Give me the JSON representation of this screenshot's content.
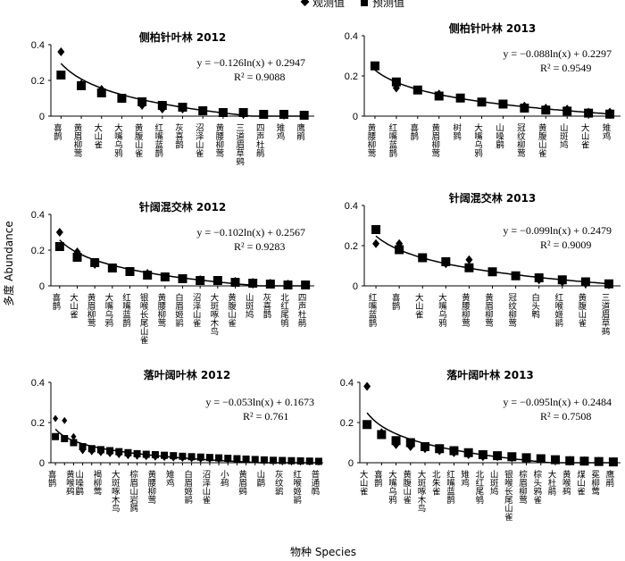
{
  "legend": {
    "observed": "观测值",
    "predicted": "预测值"
  },
  "axes": {
    "ylabel": "多度 Abundance",
    "xlabel": "物种 Species"
  },
  "chart_data": [
    {
      "type": "scatter",
      "title": "侧柏针叶林 2012",
      "equation": "y = −0.126ln(x) + 0.2947",
      "r2": "R² = 0.9088",
      "fit": {
        "a": -0.126,
        "b": 0.2947
      },
      "ylim": [
        0,
        0.4
      ],
      "yticks": [
        "0",
        "0.2",
        "0.4"
      ],
      "categories": [
        "喜鹊",
        "黄眉柳莺",
        "大山雀",
        "大嘴乌鸦",
        "黄腹山雀",
        "红嘴蓝鹊",
        "灰喜鹊",
        "沼泽山雀",
        "黄腰柳莺",
        "三道眉草鹀",
        "四声杜鹃",
        "雉鸡",
        "鹰鹃"
      ],
      "series": [
        {
          "name": "观测值",
          "values": [
            0.36,
            0.18,
            0.15,
            0.1,
            0.06,
            0.04,
            0.04,
            0.03,
            0.02,
            0.01,
            0.01,
            0.005,
            0.005
          ]
        },
        {
          "name": "预测值",
          "values": [
            0.23,
            0.17,
            0.13,
            0.1,
            0.08,
            0.06,
            0.05,
            0.03,
            0.02,
            0.02,
            0.01,
            0.01,
            0.005
          ]
        }
      ]
    },
    {
      "type": "scatter",
      "title": "侧柏针叶林 2013",
      "equation": "y = −0.088ln(x) + 0.2297",
      "r2": "R² = 0.9549",
      "fit": {
        "a": -0.088,
        "b": 0.2297
      },
      "ylim": [
        0,
        0.4
      ],
      "yticks": [
        "0",
        "0.2",
        "0.4"
      ],
      "categories": [
        "黄腰柳莺",
        "红嘴蓝鹊",
        "喜鹊",
        "黄眉柳莺",
        "树鹨",
        "大嘴乌鸦",
        "山噪鹛",
        "冠纹柳莺",
        "黄腹山雀",
        "山斑鸠",
        "大山雀",
        "雉鸡"
      ],
      "series": [
        {
          "name": "观测值",
          "values": [
            0.25,
            0.14,
            0.13,
            0.11,
            0.09,
            0.07,
            0.06,
            0.05,
            0.04,
            0.035,
            0.02,
            0.02
          ]
        },
        {
          "name": "预测值",
          "values": [
            0.25,
            0.17,
            0.13,
            0.1,
            0.09,
            0.07,
            0.06,
            0.04,
            0.03,
            0.025,
            0.015,
            0.01
          ]
        }
      ]
    },
    {
      "type": "scatter",
      "title": "针阔混交林 2012",
      "equation": "y = −0.102ln(x) + 0.2567",
      "r2": "R² = 0.9283",
      "fit": {
        "a": -0.102,
        "b": 0.2567
      },
      "ylim": [
        0,
        0.4
      ],
      "yticks": [
        "0",
        "0.2",
        "0.4"
      ],
      "categories": [
        "喜鹊",
        "大山雀",
        "黄眉柳莺",
        "大嘴乌鸦",
        "红嘴蓝鹊",
        "银喉长尾山雀",
        "黄腰柳莺",
        "白眉姬鹟",
        "沼泽山雀",
        "大斑啄木鸟",
        "黄腹山雀",
        "山斑鸠",
        "灰喜鹊",
        "北红尾鸲",
        "四声杜鹃"
      ],
      "series": [
        {
          "name": "观测值",
          "values": [
            0.3,
            0.19,
            0.12,
            0.1,
            0.08,
            0.07,
            0.05,
            0.04,
            0.035,
            0.03,
            0.025,
            0.02,
            0.015,
            0.01,
            0.005
          ]
        },
        {
          "name": "预测值",
          "values": [
            0.22,
            0.16,
            0.13,
            0.1,
            0.08,
            0.06,
            0.05,
            0.04,
            0.03,
            0.03,
            0.02,
            0.015,
            0.01,
            0.005,
            0.005
          ]
        }
      ]
    },
    {
      "type": "scatter",
      "title": "针阔混交林 2013",
      "equation": "y = −0.099ln(x) + 0.2479",
      "r2": "R² = 0.9009",
      "fit": {
        "a": -0.099,
        "b": 0.2479
      },
      "ylim": [
        0,
        0.4
      ],
      "yticks": [
        "0",
        "0.2",
        "0.4"
      ],
      "categories": [
        "红嘴蓝鹊",
        "喜鹊",
        "大山雀",
        "大嘴乌鸦",
        "黄腰柳莺",
        "黄眉柳莺",
        "冠纹柳莺",
        "白头鹎",
        "红喉姬鹟",
        "黄腹山雀",
        "三道眉草鹀"
      ],
      "series": [
        {
          "name": "观测值",
          "values": [
            0.21,
            0.21,
            0.14,
            0.11,
            0.13,
            0.07,
            0.05,
            0.03,
            0.02,
            0.01,
            0.005
          ]
        },
        {
          "name": "预测值",
          "values": [
            0.28,
            0.18,
            0.14,
            0.12,
            0.09,
            0.07,
            0.05,
            0.04,
            0.03,
            0.02,
            0.01
          ]
        }
      ]
    },
    {
      "type": "scatter",
      "title": "落叶阔叶林 2012",
      "equation": "y = −0.053ln(x) + 0.1673",
      "r2": "R² = 0.761",
      "fit": {
        "a": -0.053,
        "b": 0.1673
      },
      "ylim": [
        0,
        0.4
      ],
      "yticks": [
        "0",
        "0.2",
        "0.4"
      ],
      "categories": [
        "喜鹊",
        "",
        "黄喉鹀",
        "山噪鹛",
        "",
        "褐柳莺",
        "",
        "大斑啄木鸟",
        "",
        "棕眉山岩鹨",
        "",
        "黄腰柳莺",
        "",
        "雉鸡",
        "",
        "白眉姬鹟",
        "",
        "沼泽山雀",
        "",
        "小鹀",
        "",
        "黄眉鹀",
        "",
        "山鹛",
        "",
        "灰纹鹟",
        "",
        "红喉姬鹟",
        "",
        "普通䴓"
      ],
      "series": [
        {
          "name": "观测值",
          "values": [
            0.22,
            0.21,
            0.13,
            0.06,
            0.055,
            0.05,
            0.045,
            0.04,
            0.035,
            0.032,
            0.03,
            0.028,
            0.026,
            0.024,
            0.022,
            0.02,
            0.018,
            0.017,
            0.016,
            0.015,
            0.014,
            0.013,
            0.012,
            0.011,
            0.01,
            0.009,
            0.008,
            0.007,
            0.006,
            0.005
          ]
        },
        {
          "name": "预测值",
          "values": [
            0.13,
            0.12,
            0.1,
            0.08,
            0.07,
            0.065,
            0.06,
            0.055,
            0.05,
            0.045,
            0.042,
            0.04,
            0.037,
            0.035,
            0.032,
            0.03,
            0.028,
            0.026,
            0.024,
            0.022,
            0.02,
            0.018,
            0.016,
            0.014,
            0.012,
            0.011,
            0.01,
            0.009,
            0.008,
            0.007
          ]
        }
      ]
    },
    {
      "type": "scatter",
      "title": "落叶阔叶林 2013",
      "equation": "y = −0.095ln(x) + 0.2484",
      "r2": "R² = 0.7508",
      "fit": {
        "a": -0.095,
        "b": 0.2484
      },
      "ylim": [
        0,
        0.4
      ],
      "yticks": [
        "0",
        "0.2",
        "0.4"
      ],
      "categories": [
        "大山雀",
        "喜鹊",
        "大嘴乌鸦",
        "黄腹山雀",
        "大斑啄木鸟",
        "北朱雀",
        "红嘴蓝鹊",
        "雉鸡",
        "北红尾鸲",
        "山斑鸠",
        "银喉长尾山雀",
        "棕眉柳莺",
        "棕头鸦雀",
        "大杜鹃",
        "黄喉鹀",
        "煤山雀",
        "冕柳莺",
        "鹰鹃"
      ],
      "series": [
        {
          "name": "观测值",
          "values": [
            0.38,
            0.15,
            0.09,
            0.08,
            0.07,
            0.06,
            0.05,
            0.04,
            0.03,
            0.03,
            0.025,
            0.02,
            0.018,
            0.015,
            0.012,
            0.01,
            0.008,
            0.005
          ]
        },
        {
          "name": "预测值",
          "values": [
            0.19,
            0.14,
            0.11,
            0.1,
            0.08,
            0.07,
            0.06,
            0.05,
            0.04,
            0.035,
            0.03,
            0.025,
            0.02,
            0.015,
            0.01,
            0.008,
            0.006,
            0.004
          ]
        }
      ]
    }
  ]
}
